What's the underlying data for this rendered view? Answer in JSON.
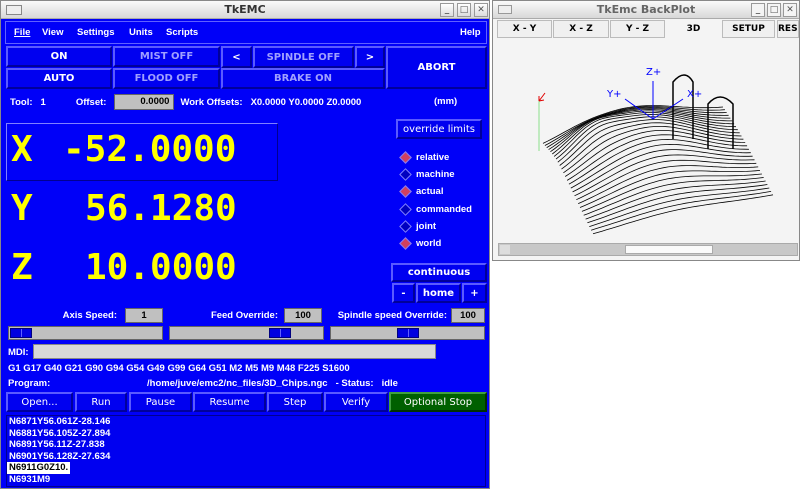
{
  "main": {
    "title": "TkEMC",
    "menu": [
      "File",
      "View",
      "Settings",
      "Units",
      "Scripts"
    ],
    "help": "Help",
    "buttons": {
      "on": "ON",
      "auto": "AUTO",
      "mist": "MIST OFF",
      "flood": "FLOOD OFF",
      "spindle_dec": "<",
      "spindle": "SPINDLE OFF",
      "spindle_inc": ">",
      "brake": "BRAKE ON",
      "abort": "ABORT"
    },
    "tool_label": "Tool:",
    "tool": "1",
    "offset_label": "Offset:",
    "offset": "0.0000",
    "work_offsets_label": "Work Offsets:",
    "work_offsets": "X0.0000 Y0.0000 Z0.0000",
    "units": "(mm)",
    "axes": [
      {
        "name": "X",
        "value": "-52.0000"
      },
      {
        "name": "Y",
        "value": "56.1280"
      },
      {
        "name": "Z",
        "value": "10.0000"
      }
    ],
    "override_limits": "override limits",
    "coords": [
      {
        "label": "relative",
        "selected": true
      },
      {
        "label": "machine",
        "selected": false
      },
      {
        "label": "actual",
        "selected": true
      },
      {
        "label": "commanded",
        "selected": false
      },
      {
        "label": "joint",
        "selected": false
      },
      {
        "label": "world",
        "selected": true
      }
    ],
    "jog_mode": "continuous",
    "jog_minus": "-",
    "home": "home",
    "jog_plus": "+",
    "axis_speed_label": "Axis Speed:",
    "axis_speed": "1",
    "feed_override_label": "Feed Override:",
    "feed_override": "100",
    "spindle_override_label": "Spindle speed Override:",
    "spindle_override": "100",
    "sliders": {
      "axis_speed": 0.0,
      "feed_override": 0.75,
      "spindle_override": 0.5
    },
    "mdi_label": "MDI:",
    "mdi_value": "",
    "modal_codes": "G1 G17 G40 G21 G90 G94 G54 G49 G99 G64 G51 M2 M5 M9 M48 F225 S1600",
    "program_label": "Program:",
    "program_path": "/home/juve/emc2/nc_files/3D_Chips.ngc",
    "status_label": "- Status:",
    "status": "idle",
    "actions": [
      "Open...",
      "Run",
      "Pause",
      "Resume",
      "Step",
      "Verify",
      "Optional Stop"
    ],
    "optional_stop_color": "#006000",
    "code_lines": [
      "N6871Y56.061Z-28.146",
      "N6881Y56.105Z-27.894",
      "N6891Y56.11Z-27.838",
      "N6901Y56.128Z-27.634",
      "N6911G0Z10.",
      "N6931M9"
    ],
    "current_line": 4
  },
  "backplot": {
    "title": "TkEmc BackPlot",
    "tabs": [
      "X - Y",
      "X - Z",
      "Y - Z",
      "3D",
      "SETUP",
      "RESET"
    ],
    "active_tab": "3D",
    "axis_labels": {
      "z": "Z+",
      "y": "Y+",
      "x": "X+"
    },
    "scroll_position": 0.6
  }
}
